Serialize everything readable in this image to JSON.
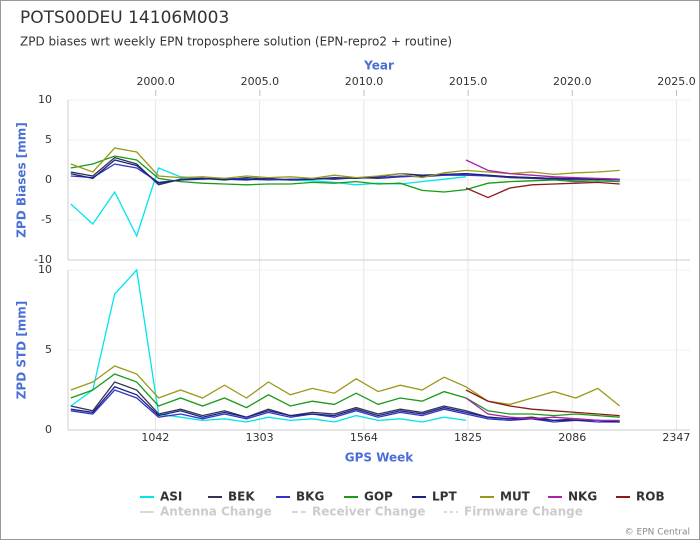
{
  "chart_data": [
    {
      "type": "line",
      "title": "POTS00DEU 14106M003",
      "subtitle": "ZPD biases wrt weekly EPN troposphere solution (EPN-repro2 + routine)",
      "xlabel": "Year",
      "xlim": [
        1995.79,
        2025.65
      ],
      "xticks": [
        {
          "value": 2000,
          "label": "2000.0"
        },
        {
          "value": 2005,
          "label": "2005.0"
        },
        {
          "value": 2010,
          "label": "2010.0"
        },
        {
          "value": 2015,
          "label": "2015.0"
        },
        {
          "value": 2020,
          "label": "2020.0"
        },
        {
          "value": 2025,
          "label": "2025.0"
        }
      ],
      "ylabel": "ZPD Biases [mm]",
      "ylim": [
        -10,
        10
      ],
      "yticks": [
        -10,
        -5,
        0,
        5,
        10
      ],
      "grid": true,
      "series": [
        {
          "name": "ASI",
          "color": "#00e5ee",
          "values": [
            -3,
            -5.5,
            -1.5,
            -7,
            1.5,
            0.4,
            0.2,
            0,
            0.3,
            0.1,
            0,
            -0.1,
            -0.3,
            -0.6,
            -0.4,
            -0.5,
            -0.2,
            0.1,
            0.4,
            null,
            null,
            null,
            null,
            null,
            null,
            null
          ]
        },
        {
          "name": "BEK",
          "color": "#333355",
          "values": [
            1,
            0.5,
            2.8,
            2,
            -0.6,
            0.1,
            0.2,
            0,
            0.3,
            0.1,
            0,
            0.2,
            0.1,
            0.3,
            0.2,
            0.4,
            0.5,
            0.6,
            0.8,
            0.5,
            0.3,
            0.2,
            0.1,
            0,
            0.1,
            0
          ]
        },
        {
          "name": "BKG",
          "color": "#3333cc",
          "values": [
            0.5,
            0.3,
            2,
            1.5,
            -0.3,
            0,
            0.1,
            0.2,
            0.1,
            0,
            0.1,
            0.1,
            0.2,
            0.3,
            0.3,
            0.5,
            0.4,
            0.6,
            0.6,
            0.5,
            0.4,
            0.3,
            0.2,
            0.1,
            0.1,
            0
          ]
        },
        {
          "name": "GOP",
          "color": "#1a9a1a",
          "values": [
            1.5,
            2,
            3,
            2.5,
            0.2,
            -0.2,
            -0.4,
            -0.5,
            -0.6,
            -0.5,
            -0.5,
            -0.3,
            -0.4,
            -0.2,
            -0.5,
            -0.4,
            -1.3,
            -1.5,
            -1.2,
            -0.4,
            -0.2,
            -0.1,
            0,
            -0.2,
            -0.1,
            -0.2
          ]
        },
        {
          "name": "LPT",
          "color": "#1a237e",
          "values": [
            0.8,
            0.2,
            2.5,
            1.8,
            -0.4,
            0,
            0.2,
            0.1,
            0,
            0.2,
            0,
            0.1,
            0.3,
            0.2,
            0.4,
            0.8,
            0.6,
            0.7,
            0.8,
            0.6,
            0.4,
            0.3,
            0.2,
            0.2,
            0.1,
            0.1
          ]
        },
        {
          "name": "MUT",
          "color": "#9a9a1a",
          "values": [
            2,
            1,
            4,
            3.5,
            0.5,
            0.3,
            0.4,
            0.2,
            0.5,
            0.3,
            0.4,
            0.2,
            0.6,
            0.3,
            0.5,
            0.8,
            0.3,
            0.9,
            1.2,
            1,
            0.8,
            1,
            0.7,
            0.9,
            1,
            1.2
          ]
        },
        {
          "name": "NKG",
          "color": "#aa22aa",
          "values": [
            null,
            null,
            null,
            null,
            null,
            null,
            null,
            null,
            null,
            null,
            null,
            null,
            null,
            null,
            null,
            null,
            null,
            null,
            2.5,
            1.2,
            0.8,
            0.6,
            0.4,
            0.3,
            0.2,
            0.1
          ]
        },
        {
          "name": "ROB",
          "color": "#8b1a1a",
          "values": [
            null,
            null,
            null,
            null,
            null,
            null,
            null,
            null,
            null,
            null,
            null,
            null,
            null,
            null,
            null,
            null,
            null,
            null,
            -1,
            -2.2,
            -1,
            -0.6,
            -0.5,
            -0.4,
            -0.3,
            -0.5
          ]
        }
      ],
      "change_legend": [
        {
          "name": "Antenna Change",
          "color": "#cccccc",
          "dash": "none"
        },
        {
          "name": "Receiver Change",
          "color": "#cccccc",
          "dash": "6 3"
        },
        {
          "name": "Firmware Change",
          "color": "#cccccc",
          "dash": "3 3"
        }
      ],
      "credit": "© EPN Central"
    },
    {
      "type": "line",
      "xlabel": "GPS Week",
      "xlim": [
        823,
        2381
      ],
      "xticks": [
        1042,
        1303,
        1564,
        1825,
        2086,
        2347
      ],
      "x": [
        830,
        885,
        940,
        995,
        1050,
        1105,
        1160,
        1215,
        1270,
        1325,
        1380,
        1435,
        1490,
        1545,
        1600,
        1655,
        1710,
        1765,
        1820,
        1875,
        1930,
        1985,
        2040,
        2095,
        2150,
        2205
      ],
      "ylabel": "ZPD STD [mm]",
      "ylim": [
        0,
        10
      ],
      "yticks": [
        0,
        5,
        10
      ],
      "grid": true,
      "series": [
        {
          "values": [
            1.5,
            2.5,
            8.5,
            10,
            1,
            0.8,
            0.6,
            0.7,
            0.5,
            0.8,
            0.6,
            0.7,
            0.5,
            0.9,
            0.6,
            0.7,
            0.5,
            0.8,
            0.6,
            null,
            null,
            null,
            null,
            null,
            null,
            null
          ]
        },
        {
          "values": [
            1.5,
            1.2,
            3,
            2.5,
            1,
            1.3,
            0.9,
            1.2,
            0.8,
            1.3,
            0.9,
            1.1,
            1,
            1.4,
            1,
            1.3,
            1.1,
            1.5,
            1.2,
            0.8,
            0.7,
            0.8,
            0.6,
            0.7,
            0.6,
            0.5
          ]
        },
        {
          "values": [
            1.2,
            1,
            2.5,
            2,
            0.8,
            1,
            0.7,
            1,
            0.7,
            1.1,
            0.8,
            1,
            0.8,
            1.2,
            0.8,
            1.1,
            0.9,
            1.3,
            1,
            0.7,
            0.6,
            0.7,
            0.5,
            0.6,
            0.5,
            0.5
          ]
        },
        {
          "values": [
            2,
            2.5,
            3.5,
            3,
            1.5,
            2,
            1.5,
            2,
            1.4,
            2.2,
            1.5,
            1.8,
            1.6,
            2.3,
            1.6,
            2,
            1.8,
            2.4,
            2,
            1.2,
            1,
            1,
            0.9,
            1,
            0.9,
            0.8
          ]
        },
        {
          "values": [
            1.3,
            1.1,
            2.7,
            2.2,
            0.9,
            1.2,
            0.8,
            1.1,
            0.8,
            1.2,
            0.9,
            1,
            0.9,
            1.3,
            0.9,
            1.2,
            1,
            1.4,
            1.1,
            0.8,
            0.7,
            0.7,
            0.6,
            0.6,
            0.6,
            0.5
          ]
        },
        {
          "values": [
            2.5,
            3,
            4,
            3.5,
            2,
            2.5,
            2,
            2.8,
            2,
            3,
            2.2,
            2.6,
            2.3,
            3.2,
            2.4,
            2.8,
            2.5,
            3.3,
            2.7,
            1.8,
            1.6,
            2,
            2.4,
            2,
            2.6,
            1.5
          ]
        },
        {
          "values": [
            null,
            null,
            null,
            null,
            null,
            null,
            null,
            null,
            null,
            null,
            null,
            null,
            null,
            null,
            null,
            null,
            null,
            null,
            2,
            1,
            0.8,
            0.7,
            0.8,
            0.7,
            0.6,
            0.6
          ]
        },
        {
          "values": [
            null,
            null,
            null,
            null,
            null,
            null,
            null,
            null,
            null,
            null,
            null,
            null,
            null,
            null,
            null,
            null,
            null,
            null,
            2.5,
            1.8,
            1.5,
            1.3,
            1.2,
            1.1,
            1,
            0.9
          ]
        }
      ]
    }
  ]
}
